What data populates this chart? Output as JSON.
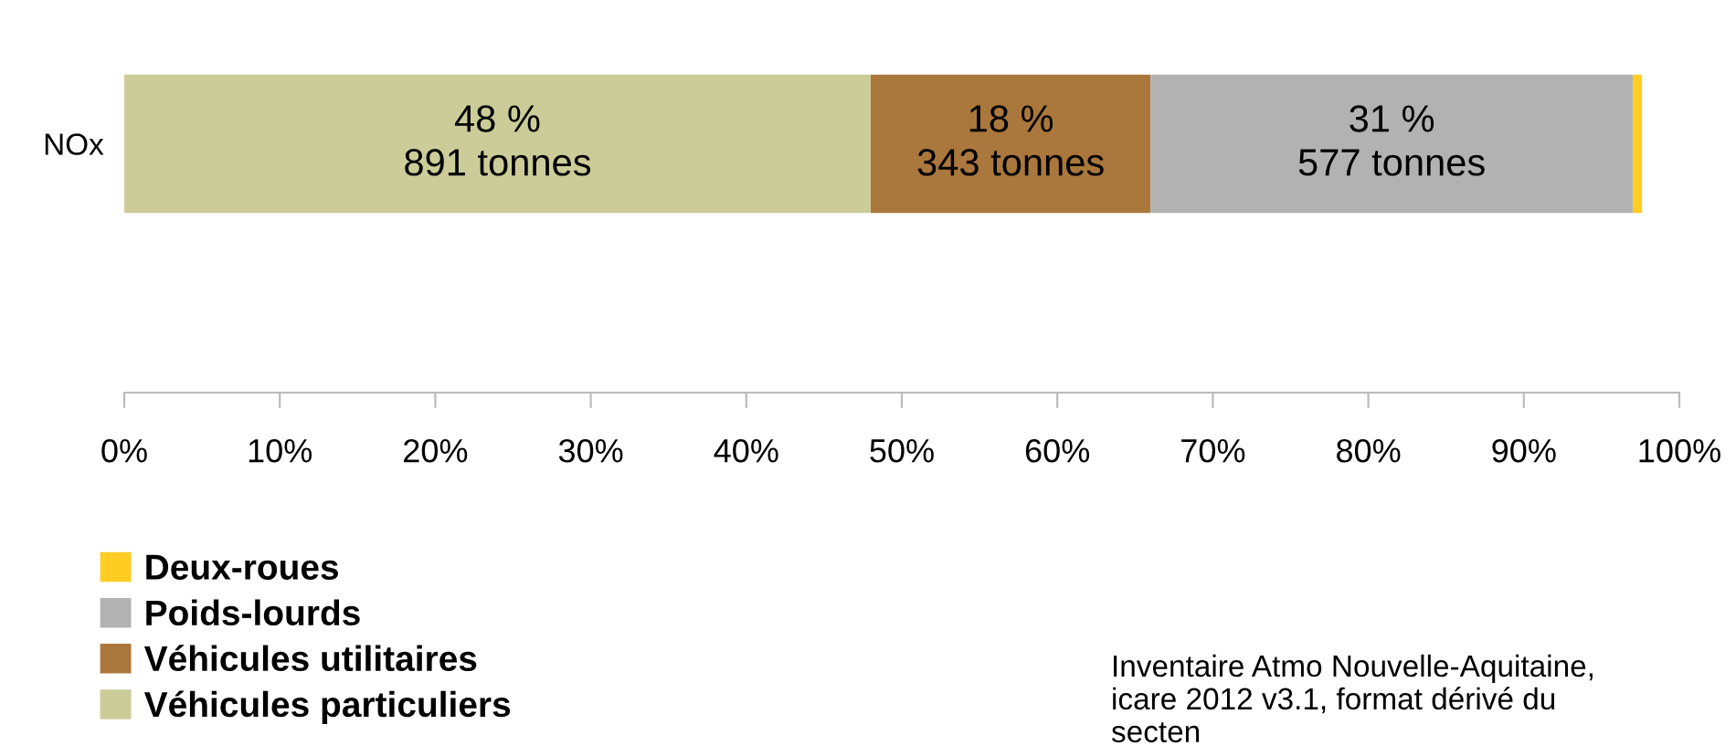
{
  "chart_data": {
    "type": "bar",
    "orientation": "horizontal",
    "stacked": true,
    "categories": [
      "NOx"
    ],
    "series": [
      {
        "name": "Véhicules particuliers",
        "color": "#cccc99",
        "values": [
          48
        ],
        "value_labels": [
          "48 %\n891 tonnes"
        ]
      },
      {
        "name": "Véhicules utilitaires",
        "color": "#aa773c",
        "values": [
          18
        ],
        "value_labels": [
          "18 %\n343 tonnes"
        ]
      },
      {
        "name": "Poids-lourds",
        "color": "#b2b2b2",
        "values": [
          31
        ],
        "value_labels": [
          "31 %\n577 tonnes"
        ]
      },
      {
        "name": "Deux-roues",
        "color": "#ffcc22",
        "values": [
          0.6
        ],
        "value_labels": [
          null
        ]
      }
    ],
    "xlim": [
      0,
      100
    ],
    "xticks": [
      {
        "value": 0,
        "label": "0%"
      },
      {
        "value": 10,
        "label": "10%"
      },
      {
        "value": 20,
        "label": "20%"
      },
      {
        "value": 30,
        "label": "30%"
      },
      {
        "value": 40,
        "label": "40%"
      },
      {
        "value": 50,
        "label": "50%"
      },
      {
        "value": 60,
        "label": "60%"
      },
      {
        "value": 70,
        "label": "70%"
      },
      {
        "value": 80,
        "label": "80%"
      },
      {
        "value": 90,
        "label": "90%"
      },
      {
        "value": 100,
        "label": "100%"
      }
    ],
    "grid": false,
    "legend": "bottom left",
    "annotations": [
      "Inventaire Atmo Nouvelle-Aquitaine, icare 2012 v3.1, format dérivé du secten"
    ]
  }
}
